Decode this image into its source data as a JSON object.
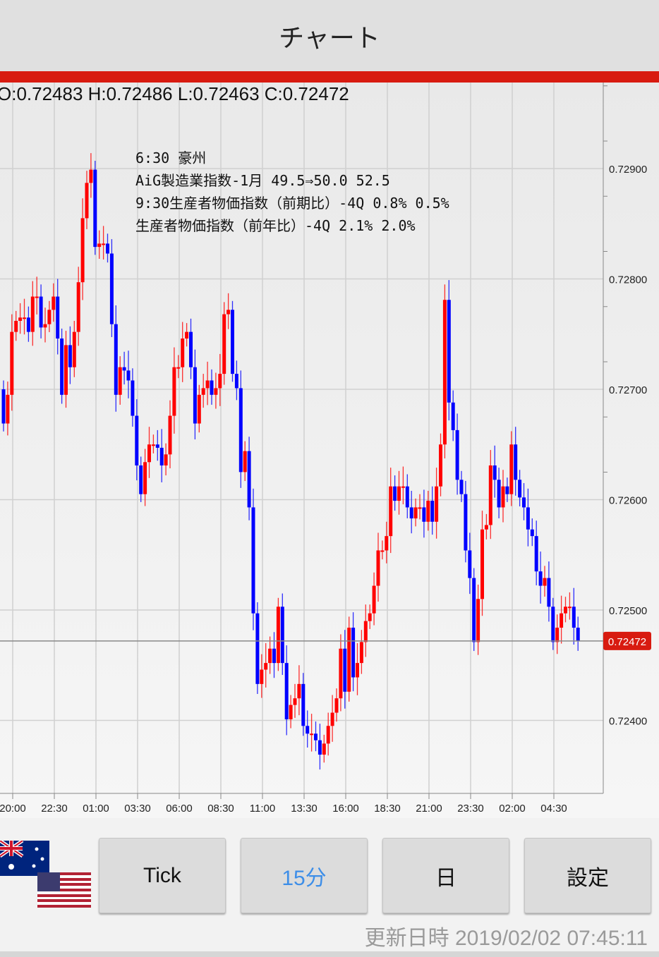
{
  "header": {
    "title": "チャート"
  },
  "ohlc": "O:0.72483 H:0.72486 L:0.72463 C:0.72472",
  "notes": [
    "6:30 豪州",
    "AiG製造業指数-1月 49.5⇒50.0 52.5",
    "9:30生産者物価指数（前期比）-4Q 0.8% 0.5%",
    "生産者物価指数（前年比）-4Q 2.1% 2.0%"
  ],
  "colors": {
    "up": "#ff0000",
    "down": "#0000ff",
    "accent": "#d81b10",
    "selected": "#3d8ee8"
  },
  "chart_data": {
    "type": "candlestick",
    "interval": "15分",
    "ylim": [
      0.7234,
      0.7295
    ],
    "y_ticks": [
      "0.72900",
      "0.72800",
      "0.72700",
      "0.72600",
      "0.72500",
      "0.72400"
    ],
    "x_ticks": [
      "20:00",
      "22:30",
      "01:00",
      "03:30",
      "06:00",
      "08:30",
      "11:00",
      "13:30",
      "16:00",
      "18:30",
      "21:00",
      "23:30",
      "02:00",
      "04:30"
    ],
    "current_price": "0.72472",
    "closes": [
      0.72669,
      0.72695,
      0.72752,
      0.72762,
      0.72765,
      0.72765,
      0.72752,
      0.72784,
      0.72784,
      0.72756,
      0.72759,
      0.72772,
      0.72784,
      0.72746,
      0.72695,
      0.7274,
      0.7272,
      0.72752,
      0.72797,
      0.72855,
      0.72887,
      0.72899,
      0.72829,
      0.72832,
      0.72832,
      0.72823,
      0.72759,
      0.72695,
      0.7272,
      0.72717,
      0.72708,
      0.72676,
      0.72631,
      0.72605,
      0.72634,
      0.7265,
      0.7265,
      0.72647,
      0.72631,
      0.72641,
      0.72676,
      0.7272,
      0.7272,
      0.72746,
      0.72752,
      0.7272,
      0.72669,
      0.72695,
      0.72701,
      0.72708,
      0.72695,
      0.72701,
      0.72714,
      0.72768,
      0.72772,
      0.72714,
      0.72701,
      0.72625,
      0.72644,
      0.72593,
      0.72497,
      0.72433,
      0.72446,
      0.72452,
      0.72465,
      0.72452,
      0.72503,
      0.72452,
      0.72401,
      0.72414,
      0.7242,
      0.72433,
      0.72395,
      0.72388,
      0.72388,
      0.72382,
      0.72369,
      0.72379,
      0.72395,
      0.72407,
      0.7242,
      0.72465,
      0.72426,
      0.72484,
      0.72439,
      0.72452,
      0.72471,
      0.7249,
      0.72497,
      0.72522,
      0.72554,
      0.72554,
      0.72567,
      0.72612,
      0.72599,
      0.72612,
      0.72612,
      0.72593,
      0.72583,
      0.72593,
      0.72593,
      0.7258,
      0.72599,
      0.7258,
      0.72612,
      0.7265,
      0.72781,
      0.72688,
      0.72663,
      0.72618,
      0.72605,
      0.72554,
      0.72529,
      0.72471,
      0.7251,
      0.72573,
      0.72577,
      0.72631,
      0.72618,
      0.72593,
      0.72612,
      0.72605,
      0.7265,
      0.72618,
      0.72602,
      0.72593,
      0.72573,
      0.72567,
      0.72535,
      0.72522,
      0.72529,
      0.72503,
      0.72471,
      0.72484,
      0.72497,
      0.72503,
      0.72503,
      0.72484,
      0.72472
    ]
  },
  "buttons": {
    "tick": "Tick",
    "m15": "15分",
    "day": "日",
    "settings": "設定"
  },
  "updated": "更新日時 2019/02/02 07:45:11"
}
